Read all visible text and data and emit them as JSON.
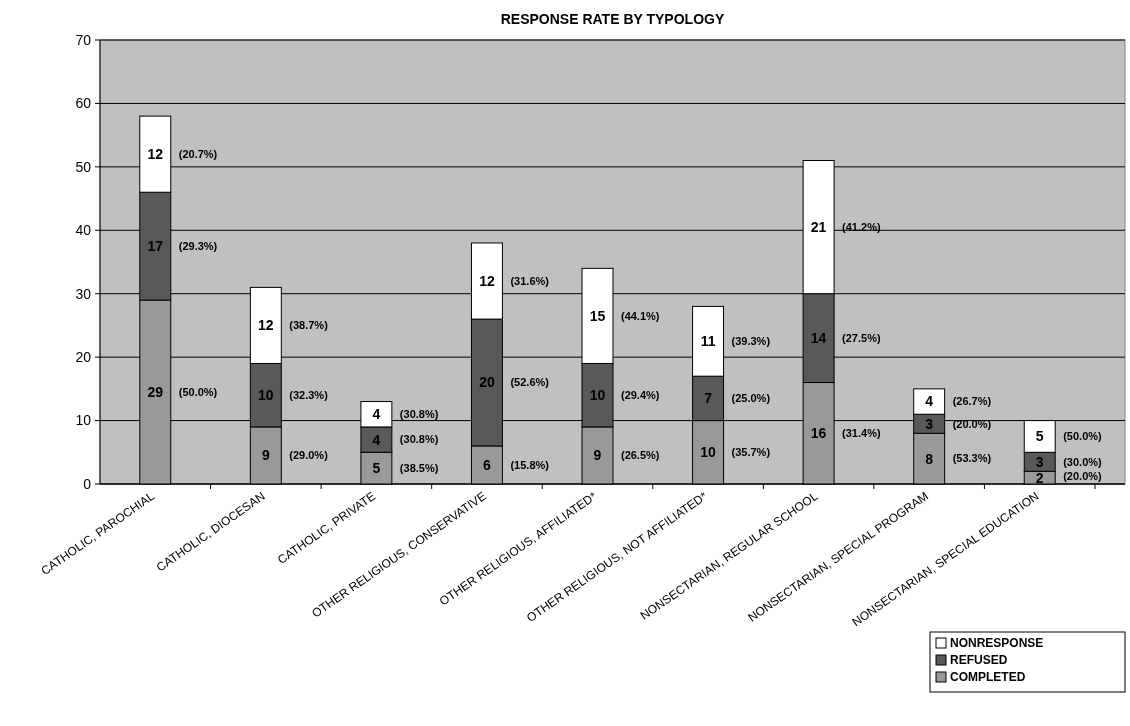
{
  "chart_data": {
    "type": "bar",
    "title": "RESPONSE RATE BY TYPOLOGY",
    "stacked": true,
    "data_labels": true,
    "grid": "y",
    "legend": "bottom right",
    "categories": [
      "CATHOLIC, PAROCHIAL",
      "CATHOLIC, DIOCESAN",
      "CATHOLIC, PRIVATE",
      "OTHER RELIGIOUS, CONSERVATIVE",
      "OTHER RELIGIOUS, AFFILIATED*",
      "OTHER RELIGIOUS, NOT AFFILIATED*",
      "NONSECTARIAN, REGULAR SCHOOL",
      "NONSECTARIAN, SPECIAL PROGRAM",
      "NONSECTARIAN, SPECIAL EDUCATION"
    ],
    "series": [
      {
        "name": "COMPLETED",
        "color": "#999999",
        "values": [
          29,
          9,
          5,
          6,
          9,
          10,
          16,
          8,
          2
        ]
      },
      {
        "name": "REFUSED",
        "color": "#595959",
        "values": [
          17,
          10,
          4,
          20,
          10,
          7,
          14,
          3,
          3
        ]
      },
      {
        "name": "NONRESPONSE",
        "color": "#ffffff",
        "values": [
          12,
          12,
          4,
          12,
          15,
          11,
          21,
          4,
          5
        ]
      }
    ],
    "ylim": [
      0,
      70
    ],
    "yticks": [
      0,
      10,
      20,
      30,
      40,
      50,
      60,
      70
    ],
    "annotations": [
      "(50.0%)",
      "(29.3%)",
      "(20.7%)",
      "(29.0%)",
      "(32.3%)",
      "(38.7%)",
      "(38.5%)",
      "(30.8%)",
      "(30.8%)",
      "(15.8%)",
      "(52.6%)",
      "(31.6%)",
      "(26.5%)",
      "(29.4%)",
      "(44.1%)",
      "(35.7%)",
      "(25.0%)",
      "(39.3%)",
      "(31.4%)",
      "(27.5%)",
      "(41.2%)",
      "(53.3%)",
      "(20.0%)",
      "(26.7%)",
      "(20.0%)",
      "(30.0%)",
      "(50.0%)"
    ]
  }
}
